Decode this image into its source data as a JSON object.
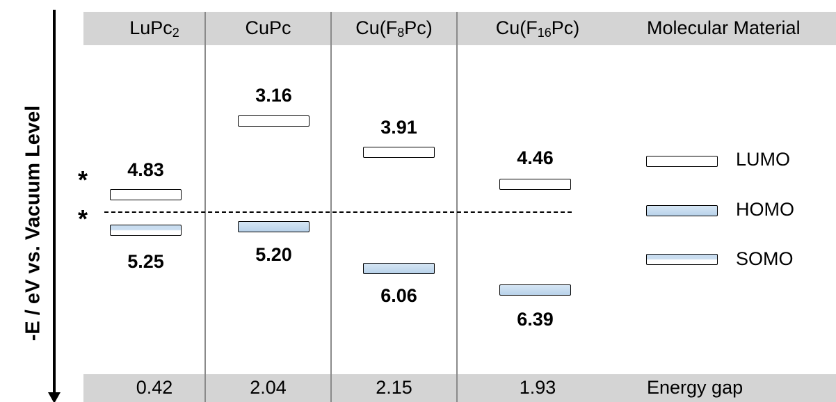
{
  "columns": [
    {
      "label_main": "LuPc",
      "label_sub": "2",
      "label_tail": "",
      "gap": "0.42"
    },
    {
      "label_main": "CuPc",
      "label_sub": "",
      "label_tail": "",
      "gap": "2.04"
    },
    {
      "label_main": "Cu(F",
      "label_sub": "8",
      "label_tail": "Pc)",
      "gap": "2.15"
    },
    {
      "label_main": "Cu(F",
      "label_sub": "16",
      "label_tail": "Pc)",
      "gap": "1.93"
    }
  ],
  "header_last": "Molecular Material",
  "footer_last": "Energy gap",
  "y_axis_label": "-E / eV vs. Vacuum Level",
  "levels": [
    {
      "material": "LuPc2",
      "upper": "4.83",
      "lower": "5.25",
      "upper_type": "lumo",
      "lower_type": "somo"
    },
    {
      "material": "CuPc",
      "upper": "3.16",
      "lower": "5.20",
      "upper_type": "lumo",
      "lower_type": "homo"
    },
    {
      "material": "Cu(F8Pc)",
      "upper": "3.91",
      "lower": "6.06",
      "upper_type": "lumo",
      "lower_type": "homo"
    },
    {
      "material": "Cu(F16Pc)",
      "upper": "4.46",
      "lower": "6.39",
      "upper_type": "lumo",
      "lower_type": "homo"
    }
  ],
  "stars": [
    "*",
    "*"
  ],
  "legend": [
    {
      "label": "LUMO",
      "type": "lumo"
    },
    {
      "label": "HOMO",
      "type": "homo"
    },
    {
      "label": "SOMO",
      "type": "somo"
    }
  ],
  "colors": {
    "band": "#d4d4d4",
    "divider": "#8a8a8a",
    "homo_fill": "#c4dbef"
  }
}
